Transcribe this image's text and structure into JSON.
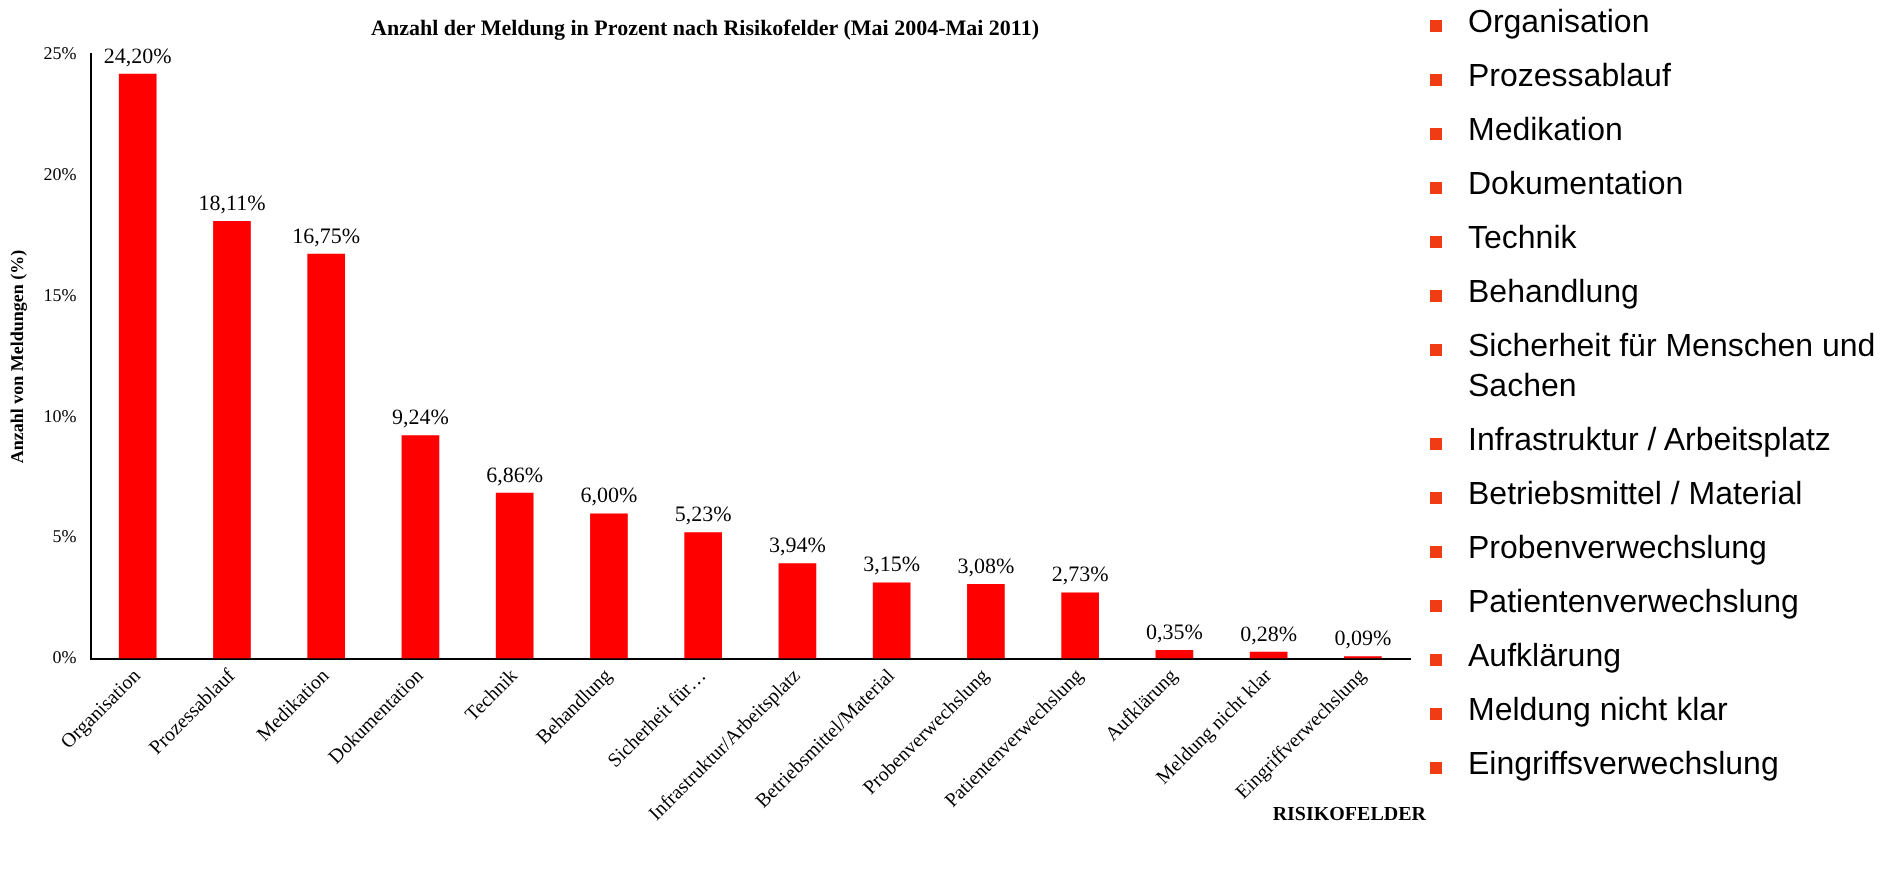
{
  "chart_data": [
    {
      "type": "bar",
      "title": "Anzahl der Meldung in Prozent nach Risikofelder (Mai 2004-Mai 2011)",
      "xlabel": "RISIKOFELDER",
      "ylabel": "Anzahl von Meldungen (%)",
      "categories": [
        "Organisation",
        "Prozessablauf",
        "Medikation",
        "Dokumentation",
        "Technik",
        "Behandlung",
        "Sicherheit für…",
        "Infrastruktur/Arbeitsplatz",
        "Betriebsmittel/Material",
        "Probenverwechslung",
        "Patientenverwechslung",
        "Aufklärung",
        "Meldung nicht klar",
        "Eingriffverwechslung"
      ],
      "values": [
        24.2,
        18.11,
        16.75,
        9.24,
        6.86,
        6.0,
        5.23,
        3.94,
        3.15,
        3.08,
        2.73,
        0.35,
        0.28,
        0.09
      ],
      "value_labels": [
        "24,20%",
        "18,11%",
        "16,75%",
        "9,24%",
        "6,86%",
        "6,00%",
        "5,23%",
        "3,94%",
        "3,15%",
        "3,08%",
        "2,73%",
        "0,35%",
        "0,28%",
        "0,09%"
      ],
      "color": "#ff0000",
      "ylim": [
        0,
        25
      ],
      "yticks": [
        {
          "value": 0,
          "label": "0%"
        },
        {
          "value": 5,
          "label": "5%"
        },
        {
          "value": 10,
          "label": "10%"
        },
        {
          "value": 15,
          "label": "15%"
        },
        {
          "value": 20,
          "label": "20%"
        },
        {
          "value": 25,
          "label": "25%"
        }
      ],
      "grid": false,
      "legend": false
    },
    {
      "type": "other",
      "annotations": [
        "Organisation",
        "Prozessablauf",
        "Medikation",
        "Dokumentation",
        "Technik",
        "Behandlung",
        "Sicherheit für Menschen und Sachen",
        "Infrastruktur / Arbeitsplatz",
        "Betriebsmittel / Material",
        "Probenverwechslung",
        "Patientenverwechslung",
        "Aufklärung",
        "Meldung nicht klar",
        "Eingriffsverwechslung"
      ]
    }
  ]
}
